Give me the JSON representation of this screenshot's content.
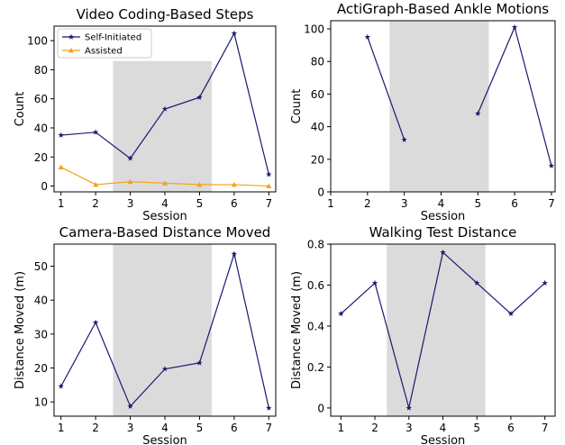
{
  "colors": {
    "self_initiated": "#191970",
    "assisted": "#f5a01a",
    "intervention_shade": "#dcdbdb"
  },
  "chart_data": [
    {
      "type": "line",
      "title": "Video Coding-Based Steps",
      "xlabel": "Session",
      "ylabel": "Count",
      "x": [
        1,
        2,
        3,
        4,
        5,
        6,
        7
      ],
      "xlim": [
        0.8,
        7.2
      ],
      "ylim": [
        -4,
        110
      ],
      "xticks": [
        1,
        2,
        3,
        4,
        5,
        6,
        7
      ],
      "yticks": [
        0,
        20,
        40,
        60,
        80,
        100
      ],
      "shaded_range": {
        "x": [
          2.5,
          5.35
        ],
        "y_top": 86
      },
      "legend": {
        "placement": "top-left"
      },
      "series": [
        {
          "name": "Self-Initiated",
          "color_key": "self_initiated",
          "marker": "star",
          "values": [
            35,
            37,
            19,
            53,
            61,
            105,
            8
          ]
        },
        {
          "name": "Assisted",
          "color_key": "assisted",
          "marker": "triangle",
          "values": [
            13,
            1,
            3,
            2,
            1,
            1,
            0
          ]
        }
      ]
    },
    {
      "type": "line",
      "title": "ActiGraph-Based Ankle Motions",
      "xlabel": "Session",
      "ylabel": "Count",
      "x": [
        1,
        2,
        3,
        4,
        5,
        6,
        7
      ],
      "xlim": [
        1,
        7.1
      ],
      "ylim": [
        0,
        105
      ],
      "xticks": [
        1,
        2,
        3,
        4,
        5,
        6,
        7
      ],
      "yticks": [
        0,
        20,
        40,
        60,
        80,
        100
      ],
      "shaded_range": {
        "x": [
          2.6,
          5.3
        ],
        "y_top": 105
      },
      "series": [
        {
          "color_key": "self_initiated",
          "marker": "star",
          "values": [
            null,
            95,
            32,
            null,
            48,
            101,
            16
          ]
        }
      ]
    },
    {
      "type": "line",
      "title": "Camera-Based Distance Moved",
      "xlabel": "Session",
      "ylabel": "Distance Moved (m)",
      "x": [
        1,
        2,
        3,
        4,
        5,
        6,
        7
      ],
      "xlim": [
        0.8,
        7.2
      ],
      "ylim": [
        5.8,
        56.5
      ],
      "xticks": [
        1,
        2,
        3,
        4,
        5,
        6,
        7
      ],
      "yticks": [
        10,
        20,
        30,
        40,
        50
      ],
      "shaded_range": {
        "x": [
          2.5,
          5.35
        ],
        "y_top": 56.5
      },
      "series": [
        {
          "color_key": "self_initiated",
          "marker": "star",
          "values": [
            14.6,
            33.4,
            8.7,
            19.7,
            21.5,
            53.6,
            8.2
          ]
        }
      ]
    },
    {
      "type": "line",
      "title": "Walking Test Distance",
      "xlabel": "Session",
      "ylabel": "Distance Moved (m)",
      "x": [
        1,
        2,
        3,
        4,
        5,
        6,
        7
      ],
      "xlim": [
        0.7,
        7.3
      ],
      "ylim": [
        -0.04,
        0.8
      ],
      "xticks": [
        1,
        2,
        3,
        4,
        5,
        6,
        7
      ],
      "yticks": [
        0,
        0.2,
        0.4,
        0.6,
        0.8
      ],
      "shaded_range": {
        "x": [
          2.35,
          5.25
        ],
        "y_top": 0.8
      },
      "series": [
        {
          "color_key": "self_initiated",
          "marker": "star",
          "values": [
            0.46,
            0.61,
            0,
            0.76,
            0.61,
            0.46,
            0.61
          ]
        }
      ]
    }
  ]
}
